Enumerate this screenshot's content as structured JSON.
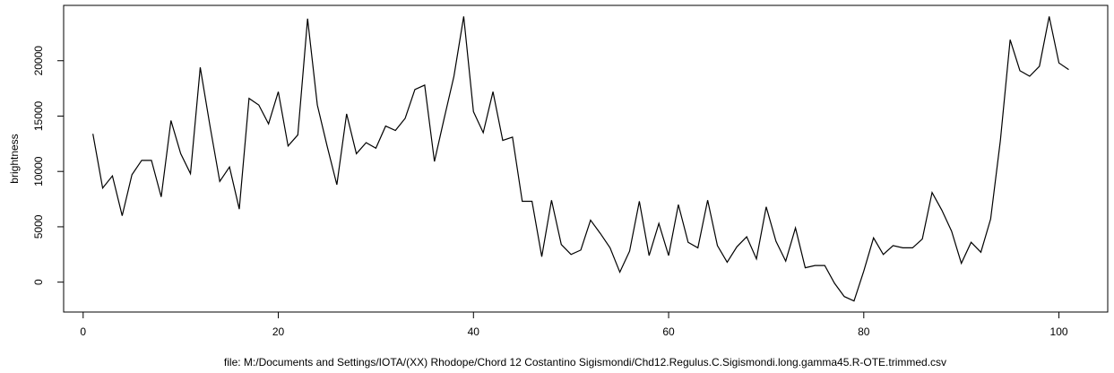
{
  "chart_data": {
    "type": "line",
    "title": "",
    "xlabel": "file: M:/Documents and Settings/IOTA/(XX) Rhodope/Chord 12 Costantino Sigismondi/Chd12.Regulus.C.Sigismondi.long.gamma45.R-OTE.trimmed.csv",
    "ylabel": "brightness",
    "xlim": [
      -2,
      105
    ],
    "ylim": [
      -2700,
      25000
    ],
    "xticks": [
      0,
      20,
      40,
      60,
      80,
      100
    ],
    "yticks": [
      0,
      5000,
      10000,
      15000,
      20000
    ],
    "grid": false,
    "line_color": "#000000",
    "series": [
      {
        "x": [
          1,
          2,
          3,
          4,
          5,
          6,
          7,
          8,
          9,
          10,
          11,
          12,
          13,
          14,
          15,
          16,
          17,
          18,
          19,
          20,
          21,
          22,
          23,
          24,
          25,
          26,
          27,
          28,
          29,
          30,
          31,
          32,
          33,
          34,
          35,
          36,
          37,
          38,
          39,
          40,
          41,
          42,
          43,
          44,
          45,
          46,
          47,
          48,
          49,
          50,
          51,
          52,
          53,
          54,
          55,
          56,
          57,
          58,
          59,
          60,
          61,
          62,
          63,
          64,
          65,
          66,
          67,
          68,
          69,
          70,
          71,
          72,
          73,
          74,
          75,
          76,
          77,
          78,
          79,
          80,
          81,
          82,
          83,
          84,
          85,
          86,
          87,
          88,
          89,
          90,
          91,
          92,
          93,
          94,
          95,
          96,
          97,
          98,
          99,
          100,
          101
        ],
        "values": [
          13400,
          8500,
          9600,
          6000,
          9700,
          11000,
          11000,
          7700,
          14600,
          11600,
          9800,
          19400,
          14100,
          9100,
          10400,
          6600,
          16600,
          16000,
          14300,
          17200,
          12300,
          13300,
          23800,
          16000,
          12300,
          8800,
          15200,
          11600,
          12600,
          12100,
          14100,
          13700,
          14800,
          17400,
          17800,
          10900,
          14800,
          18600,
          24000,
          15400,
          13500,
          17200,
          12800,
          13100,
          7300,
          7300,
          2300,
          7400,
          3400,
          2500,
          2900,
          5600,
          4400,
          3100,
          900,
          2800,
          7300,
          2400,
          5300,
          2400,
          7000,
          3600,
          3100,
          7400,
          3300,
          1800,
          3200,
          4100,
          2100,
          6800,
          3700,
          1900,
          4900,
          1300,
          1500,
          1500,
          -100,
          -1300,
          -1700,
          1000,
          4000,
          2500,
          3300,
          3100,
          3100,
          3900,
          8100,
          6500,
          4600,
          1700,
          3600,
          2700,
          5700,
          12800,
          21900,
          19100,
          18600,
          19500,
          24000,
          19800,
          19200
        ]
      }
    ]
  }
}
